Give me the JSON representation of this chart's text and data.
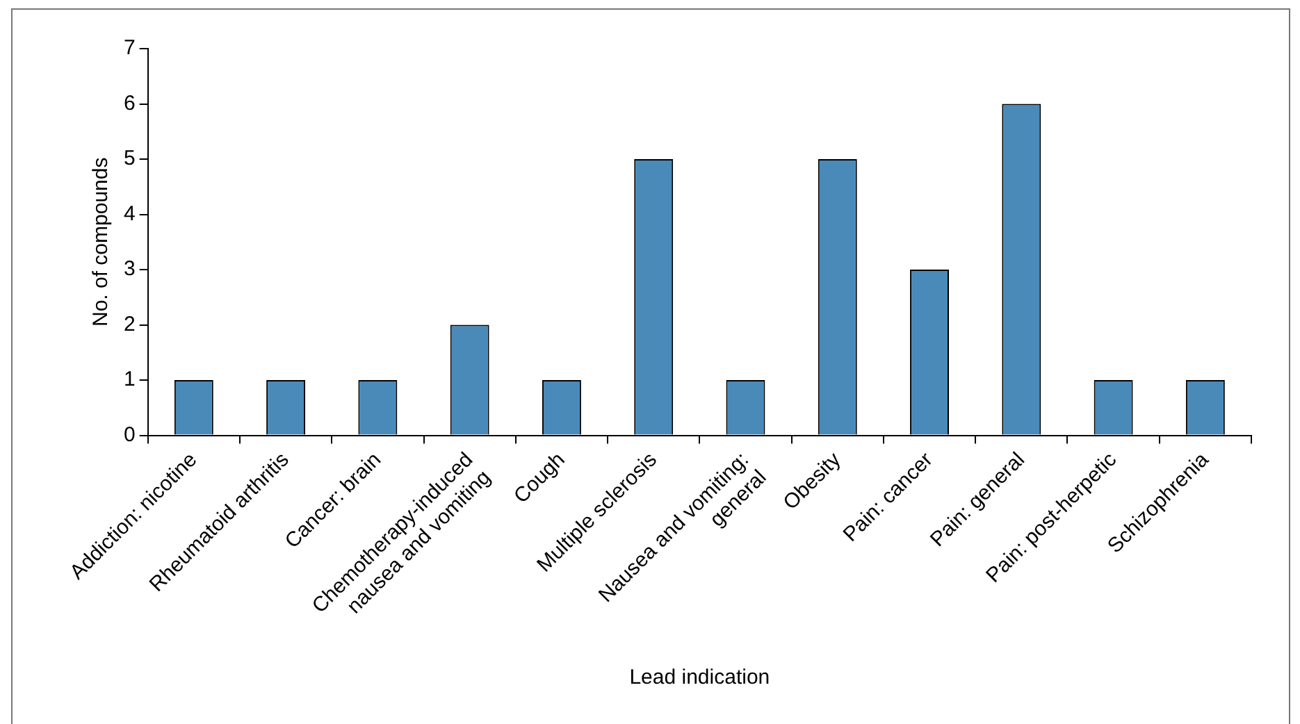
{
  "chart_data": {
    "type": "bar",
    "xlabel": "Lead indication",
    "ylabel": "No. of compounds",
    "categories": [
      "Addiction: nicotine",
      "Rheumatoid arthritis",
      "Cancer: brain",
      "Chemotherapy-induced\nnausea and vomiting",
      "Cough",
      "Multiple sclerosis",
      "Nausea and vomiting:\ngeneral",
      "Obesity",
      "Pain: cancer",
      "Pain: general",
      "Pain: post-herpetic",
      "Schizophrenia"
    ],
    "values": [
      1,
      1,
      1,
      2,
      1,
      5,
      1,
      5,
      3,
      6,
      1,
      1
    ],
    "color": "#4a8ab8",
    "ylim": [
      0,
      7
    ],
    "yticks": [
      0,
      1,
      2,
      3,
      4,
      5,
      6,
      7
    ],
    "grid": false,
    "legend": false
  }
}
